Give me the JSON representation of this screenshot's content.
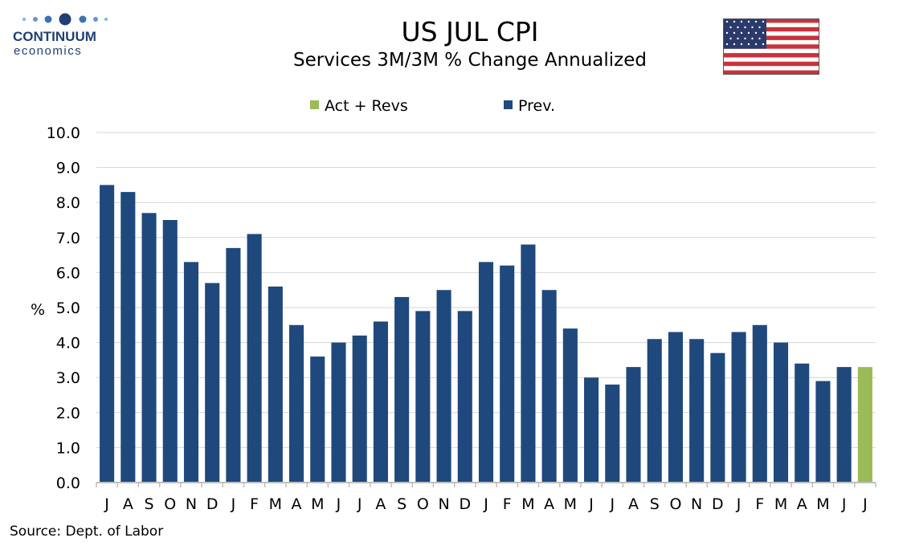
{
  "brand": {
    "line1": "CONTINUUM",
    "line2": "economics",
    "color": "#1f3f75"
  },
  "title": "US JUL CPI",
  "subtitle": "Services 3M/3M % Change Annualized",
  "source": "Source: Dept. of Labor",
  "chart_data": {
    "type": "bar",
    "title": "US JUL CPI",
    "subtitle": "Services 3M/3M % Change Annualized",
    "xlabel": "",
    "ylabel": "%",
    "ylim": [
      0,
      10
    ],
    "yticks": [
      "0.0",
      "1.0",
      "2.0",
      "3.0",
      "4.0",
      "5.0",
      "6.0",
      "7.0",
      "8.0",
      "9.0",
      "10.0"
    ],
    "grid": true,
    "legend_position": "top",
    "categories": [
      "J",
      "A",
      "S",
      "O",
      "N",
      "D",
      "J",
      "F",
      "M",
      "A",
      "M",
      "J",
      "J",
      "A",
      "S",
      "O",
      "N",
      "D",
      "J",
      "F",
      "M",
      "A",
      "M",
      "J",
      "J",
      "A",
      "S",
      "O",
      "N",
      "D",
      "J",
      "F",
      "M",
      "A",
      "M",
      "J",
      "J"
    ],
    "series": [
      {
        "name": "Act + Revs",
        "color": "#9bbb59",
        "values": [
          null,
          null,
          null,
          null,
          null,
          null,
          null,
          null,
          null,
          null,
          null,
          null,
          null,
          null,
          null,
          null,
          null,
          null,
          null,
          null,
          null,
          null,
          null,
          null,
          null,
          null,
          null,
          null,
          null,
          null,
          null,
          null,
          null,
          null,
          null,
          null,
          3.3
        ]
      },
      {
        "name": "Prev.",
        "color": "#1f497d",
        "values": [
          8.5,
          8.3,
          7.7,
          7.5,
          6.3,
          5.7,
          6.7,
          7.1,
          5.6,
          4.5,
          3.6,
          4.0,
          4.2,
          4.6,
          5.3,
          4.9,
          5.5,
          4.9,
          6.3,
          6.2,
          6.8,
          5.5,
          4.4,
          3.0,
          2.8,
          3.3,
          4.1,
          4.3,
          4.1,
          3.7,
          4.3,
          4.5,
          4.0,
          3.4,
          2.9,
          3.3,
          null
        ]
      }
    ]
  }
}
